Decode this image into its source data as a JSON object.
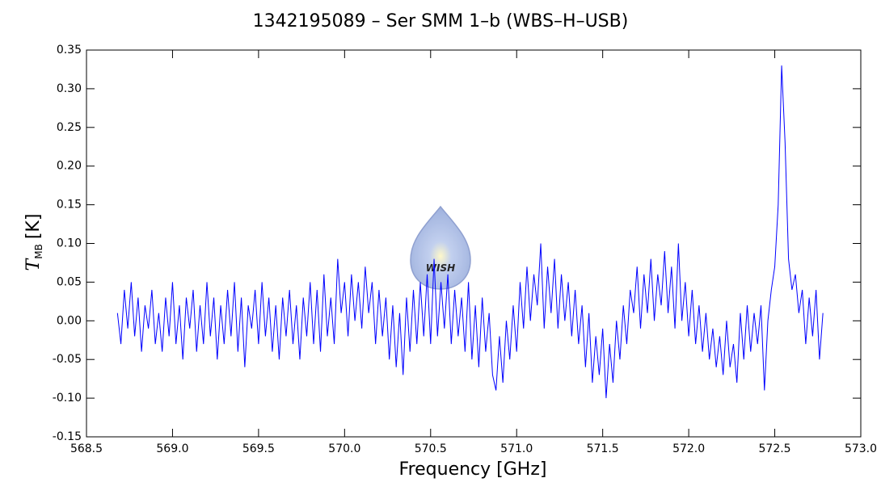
{
  "chart_data": {
    "type": "line",
    "title": "1342195089 – Ser SMM 1–b (WBS–H–USB)",
    "xlabel": "Frequency [GHz]",
    "ylabel": "T",
    "ylabel_sub": "MB",
    "ylabel_unit": "[K]",
    "watermark": "WISH",
    "color": "#0000ff",
    "xlim": [
      568.5,
      573.0
    ],
    "xticks": [
      568.5,
      {
        "value": 569,
        "label": "569.0"
      },
      569.5,
      {
        "value": 570,
        "label": "570.0"
      },
      570.5,
      {
        "value": 571,
        "label": "571.0"
      },
      571.5,
      {
        "value": 572,
        "label": "572.0"
      },
      572.5,
      {
        "value": 573,
        "label": "573.0"
      }
    ],
    "ylim": [
      -0.15,
      0.35
    ],
    "yticks": [
      -0.15,
      {
        "value": -0.1,
        "label": "-0.10"
      },
      -0.05,
      {
        "value": 0,
        "label": "0.00"
      },
      0.05,
      {
        "value": 0.1,
        "label": "0.10"
      },
      0.15,
      {
        "value": 0.2,
        "label": "0.20"
      },
      0.25,
      {
        "value": 0.3,
        "label": "0.30"
      },
      0.35
    ],
    "x": [
      568.68,
      568.7,
      568.72,
      568.74,
      568.76,
      568.78,
      568.8,
      568.82,
      568.84,
      568.86,
      568.88,
      568.9,
      568.92,
      568.94,
      568.96,
      568.98,
      569.0,
      569.02,
      569.04,
      569.06,
      569.08,
      569.1,
      569.12,
      569.14,
      569.16,
      569.18,
      569.2,
      569.22,
      569.24,
      569.26,
      569.28,
      569.3,
      569.32,
      569.34,
      569.36,
      569.38,
      569.4,
      569.42,
      569.44,
      569.46,
      569.48,
      569.5,
      569.52,
      569.54,
      569.56,
      569.58,
      569.6,
      569.62,
      569.64,
      569.66,
      569.68,
      569.7,
      569.72,
      569.74,
      569.76,
      569.78,
      569.8,
      569.82,
      569.84,
      569.86,
      569.88,
      569.9,
      569.92,
      569.94,
      569.96,
      569.98,
      570.0,
      570.02,
      570.04,
      570.06,
      570.08,
      570.1,
      570.12,
      570.14,
      570.16,
      570.18,
      570.2,
      570.22,
      570.24,
      570.26,
      570.28,
      570.3,
      570.32,
      570.34,
      570.36,
      570.38,
      570.4,
      570.42,
      570.44,
      570.46,
      570.48,
      570.5,
      570.52,
      570.54,
      570.56,
      570.58,
      570.6,
      570.62,
      570.64,
      570.66,
      570.68,
      570.7,
      570.72,
      570.74,
      570.76,
      570.78,
      570.8,
      570.82,
      570.84,
      570.86,
      570.88,
      570.9,
      570.92,
      570.94,
      570.96,
      570.98,
      571.0,
      571.02,
      571.04,
      571.06,
      571.08,
      571.1,
      571.12,
      571.14,
      571.16,
      571.18,
      571.2,
      571.22,
      571.24,
      571.26,
      571.28,
      571.3,
      571.32,
      571.34,
      571.36,
      571.38,
      571.4,
      571.42,
      571.44,
      571.46,
      571.48,
      571.5,
      571.52,
      571.54,
      571.56,
      571.58,
      571.6,
      571.62,
      571.64,
      571.66,
      571.68,
      571.7,
      571.72,
      571.74,
      571.76,
      571.78,
      571.8,
      571.82,
      571.84,
      571.86,
      571.88,
      571.9,
      571.92,
      571.94,
      571.96,
      571.98,
      572.0,
      572.02,
      572.04,
      572.06,
      572.08,
      572.1,
      572.12,
      572.14,
      572.16,
      572.18,
      572.2,
      572.22,
      572.24,
      572.26,
      572.28,
      572.3,
      572.32,
      572.34,
      572.36,
      572.38,
      572.4,
      572.42,
      572.44,
      572.46,
      572.48,
      572.5,
      572.52,
      572.54,
      572.56,
      572.58,
      572.6,
      572.62,
      572.64,
      572.66,
      572.68,
      572.7,
      572.72,
      572.74,
      572.76,
      572.78
    ],
    "values": [
      0.01,
      -0.03,
      0.04,
      -0.01,
      0.05,
      -0.02,
      0.03,
      -0.04,
      0.02,
      -0.01,
      0.04,
      -0.03,
      0.01,
      -0.04,
      0.03,
      -0.02,
      0.05,
      -0.03,
      0.02,
      -0.05,
      0.03,
      -0.01,
      0.04,
      -0.04,
      0.02,
      -0.03,
      0.05,
      -0.02,
      0.03,
      -0.05,
      0.02,
      -0.03,
      0.04,
      -0.02,
      0.05,
      -0.04,
      0.03,
      -0.06,
      0.02,
      -0.01,
      0.04,
      -0.03,
      0.05,
      -0.02,
      0.03,
      -0.04,
      0.02,
      -0.05,
      0.03,
      -0.02,
      0.04,
      -0.03,
      0.02,
      -0.05,
      0.03,
      -0.02,
      0.05,
      -0.03,
      0.04,
      -0.04,
      0.06,
      -0.02,
      0.03,
      -0.03,
      0.08,
      0.01,
      0.05,
      -0.02,
      0.06,
      0.0,
      0.05,
      -0.01,
      0.07,
      0.01,
      0.05,
      -0.03,
      0.04,
      -0.02,
      0.03,
      -0.05,
      0.02,
      -0.06,
      0.01,
      -0.07,
      0.03,
      -0.04,
      0.04,
      -0.03,
      0.05,
      -0.02,
      0.06,
      -0.03,
      0.08,
      -0.02,
      0.05,
      -0.01,
      0.06,
      -0.03,
      0.04,
      -0.02,
      0.03,
      -0.04,
      0.05,
      -0.05,
      0.02,
      -0.06,
      0.03,
      -0.04,
      0.01,
      -0.07,
      -0.09,
      -0.02,
      -0.08,
      0.0,
      -0.05,
      0.02,
      -0.04,
      0.05,
      -0.01,
      0.07,
      0.0,
      0.06,
      0.02,
      0.1,
      -0.01,
      0.07,
      0.01,
      0.08,
      -0.01,
      0.06,
      0.0,
      0.05,
      -0.02,
      0.04,
      -0.03,
      0.02,
      -0.06,
      0.01,
      -0.08,
      -0.02,
      -0.07,
      -0.01,
      -0.1,
      -0.03,
      -0.08,
      0.0,
      -0.05,
      0.02,
      -0.03,
      0.04,
      0.01,
      0.07,
      -0.01,
      0.06,
      0.01,
      0.08,
      0.0,
      0.06,
      0.02,
      0.09,
      0.01,
      0.07,
      -0.01,
      0.1,
      0.0,
      0.05,
      -0.02,
      0.04,
      -0.03,
      0.02,
      -0.04,
      0.01,
      -0.05,
      -0.01,
      -0.06,
      -0.02,
      -0.07,
      0.0,
      -0.06,
      -0.03,
      -0.08,
      0.01,
      -0.05,
      0.02,
      -0.04,
      0.01,
      -0.03,
      0.02,
      -0.09,
      0.0,
      0.04,
      0.07,
      0.15,
      0.33,
      0.23,
      0.08,
      0.04,
      0.06,
      0.01,
      0.04,
      -0.03,
      0.03,
      -0.02,
      0.04,
      -0.05,
      0.01
    ]
  }
}
